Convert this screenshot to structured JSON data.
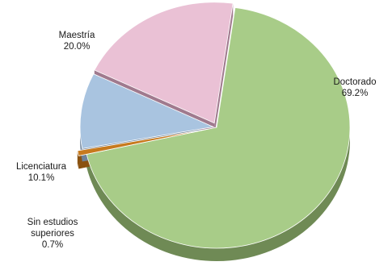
{
  "chart_data": {
    "type": "pie",
    "title": "",
    "slices": [
      {
        "label": "Doctorado",
        "value": 69.2,
        "display": "69.2%",
        "color": "#a8cc88",
        "side": "#6f8a55"
      },
      {
        "label": "Sin estudios superiores",
        "value": 0.7,
        "display": "0.7%",
        "color": "#c77a1e",
        "side": "#8a5210"
      },
      {
        "label": "Licenciatura",
        "value": 10.1,
        "display": "10.1%",
        "color": "#a9c4e0",
        "side": "#6e8299"
      },
      {
        "label": "Maestría",
        "value": 20.0,
        "display": "20.0%",
        "color": "#eac1d5",
        "side": "#a07a8e"
      }
    ],
    "style": "3d-exploded",
    "legend": "none"
  }
}
